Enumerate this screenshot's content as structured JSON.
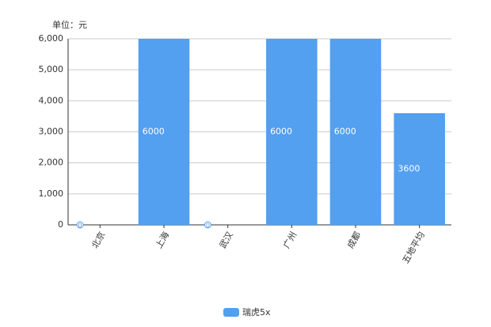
{
  "chart_data": {
    "type": "bar",
    "unit": "单位：元",
    "categories": [
      "北京",
      "上海",
      "武汉",
      "广州",
      "成都",
      "五地平均"
    ],
    "series": [
      {
        "name": "瑞虎5x",
        "color": "#539ff0",
        "values": [
          0,
          6000,
          0,
          6000,
          6000,
          3600
        ]
      }
    ],
    "ylim": [
      0,
      6000
    ],
    "yticks": [
      0,
      {
        "value": 1000,
        "label": "1,000"
      },
      {
        "value": 2000,
        "label": "2,000"
      },
      {
        "value": 3000,
        "label": "3,000"
      },
      {
        "value": 4000,
        "label": "4,000"
      },
      {
        "value": 5000,
        "label": "5,000"
      },
      {
        "value": 6000,
        "label": "6,000"
      }
    ],
    "grid": true
  }
}
